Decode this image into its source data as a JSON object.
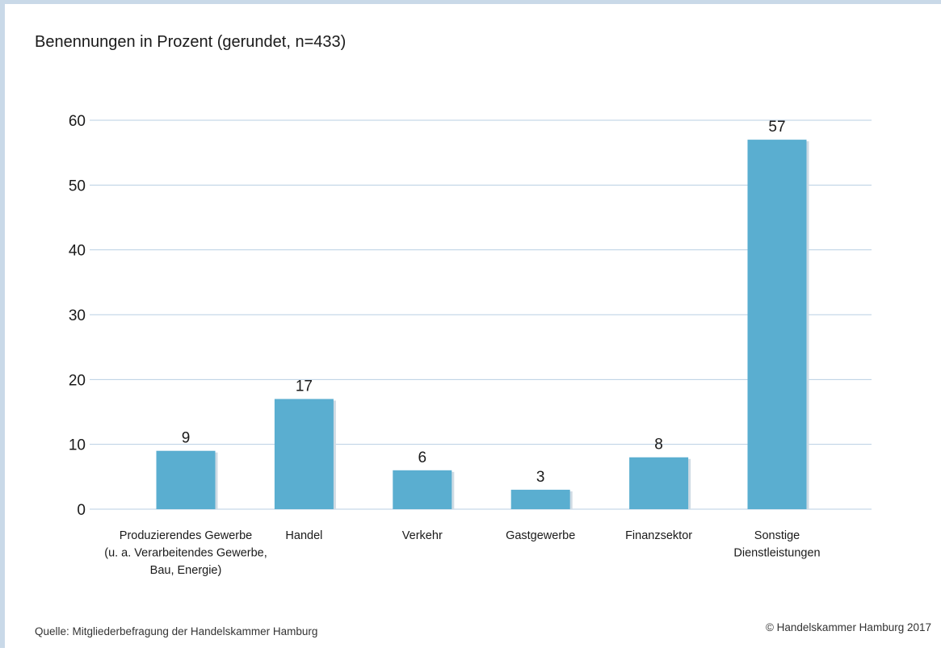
{
  "subtitle": "Benennungen in Prozent (gerundet, n=433)",
  "source": "Quelle: Mitgliederbefragung der Handelskammer Hamburg",
  "copyright": "© Handelskammer Hamburg 2017",
  "colors": {
    "bar": "#5aaed0",
    "bar_shadow": "#cfdbe4",
    "grid": "#b8cfe3",
    "frame": "#c9d9e8"
  },
  "chart_data": {
    "type": "bar",
    "categories": [
      [
        "Produzierendes Gewerbe",
        "(u. a. Verarbeitendes Gewerbe,",
        "Bau, Energie)"
      ],
      [
        "Handel"
      ],
      [
        "Verkehr"
      ],
      [
        "Gastgewerbe"
      ],
      [
        "Finanzsektor"
      ],
      [
        "Sonstige",
        "Dienstleistungen"
      ]
    ],
    "values": [
      9,
      17,
      6,
      3,
      8,
      57
    ],
    "data_labels": [
      "9",
      "17",
      "6",
      "3",
      "8",
      "57"
    ],
    "yticks": [
      "0",
      "10",
      "20",
      "30",
      "40",
      "50",
      "60"
    ],
    "ylim": [
      0,
      60
    ],
    "grid": true
  }
}
